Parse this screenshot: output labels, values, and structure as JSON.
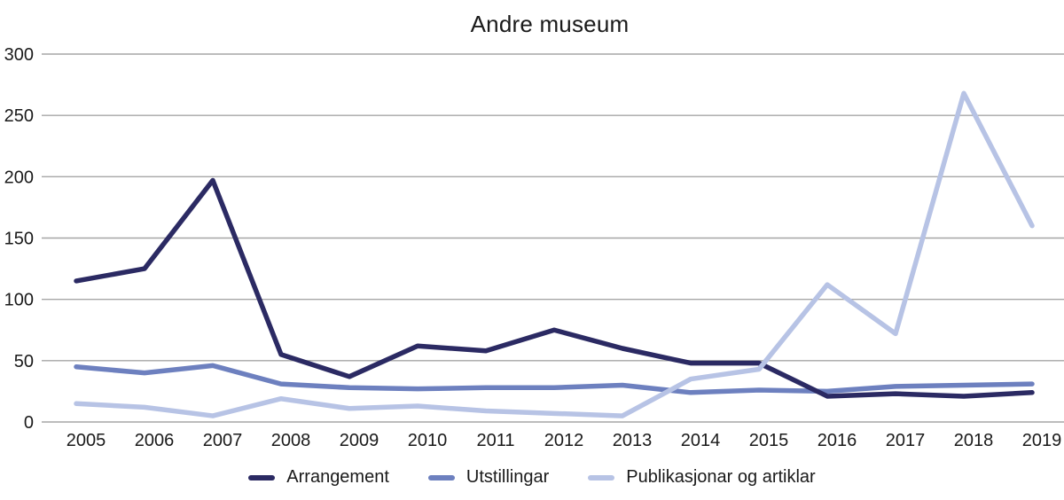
{
  "chart_data": {
    "type": "line",
    "title": "Andre museum",
    "x": [
      "2005",
      "2006",
      "2007",
      "2008",
      "2009",
      "2010",
      "2011",
      "2012",
      "2013",
      "2014",
      "2015",
      "2016",
      "2017",
      "2018",
      "2019"
    ],
    "series": [
      {
        "name": "Arrangement",
        "color": "#2b2a63",
        "values": [
          115,
          125,
          197,
          55,
          37,
          62,
          58,
          75,
          60,
          48,
          48,
          21,
          23,
          21,
          24
        ]
      },
      {
        "name": "Utstillingar",
        "color": "#6d80bf",
        "values": [
          45,
          40,
          46,
          31,
          28,
          27,
          28,
          28,
          30,
          24,
          26,
          25,
          29,
          30,
          31
        ]
      },
      {
        "name": "Publikasjonar og artiklar",
        "color": "#b7c3e5",
        "values": [
          15,
          12,
          5,
          19,
          11,
          13,
          9,
          7,
          5,
          35,
          43,
          112,
          72,
          268,
          160
        ]
      }
    ],
    "ylim": [
      0,
      300
    ],
    "yticks": [
      0,
      50,
      100,
      150,
      200,
      250,
      300
    ],
    "xlabel": "",
    "ylabel": "",
    "grid": "horizontal",
    "gridline_color": "#a6a6a6",
    "text_color": "#1a1a1a",
    "legend_position": "bottom",
    "draw_order": [
      "Utstillingar",
      "Arrangement",
      "Publikasjonar og artiklar"
    ]
  }
}
